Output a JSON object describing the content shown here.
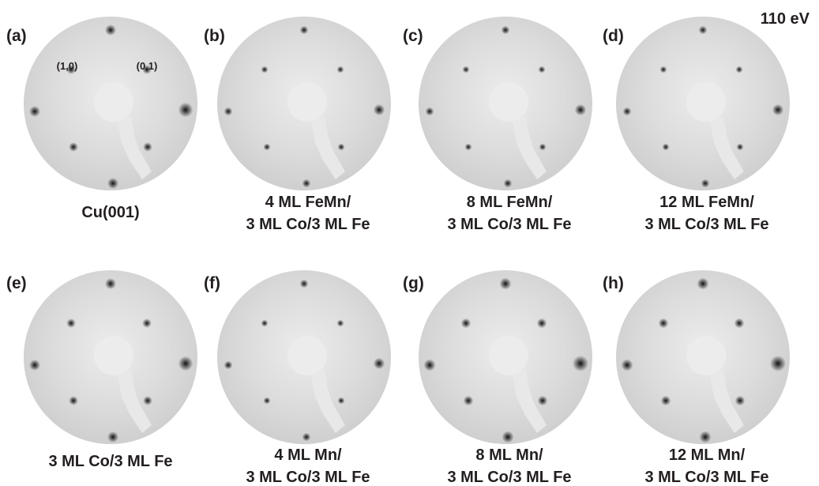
{
  "energy": "110 eV",
  "panels": [
    {
      "label": "(a)",
      "caption": [
        "Cu(001)"
      ],
      "spot_labels": [
        "(1,0)",
        "(0,1)"
      ]
    },
    {
      "label": "(b)",
      "caption": [
        "4 ML FeMn/",
        "3 ML Co/3 ML Fe"
      ]
    },
    {
      "label": "(c)",
      "caption": [
        "8 ML FeMn/",
        "3 ML Co/3 ML Fe"
      ]
    },
    {
      "label": "(d)",
      "caption": [
        "12 ML FeMn/",
        "3 ML Co/3 ML Fe"
      ]
    },
    {
      "label": "(e)",
      "caption": [
        "3 ML Co/3 ML Fe"
      ]
    },
    {
      "label": "(f)",
      "caption": [
        "4 ML Mn/",
        "3 ML Co/3 ML Fe"
      ]
    },
    {
      "label": "(g)",
      "caption": [
        "8 ML Mn/",
        "3 ML Co/3 ML Fe"
      ]
    },
    {
      "label": "(h)",
      "caption": [
        "12 ML Mn/",
        "3 ML Co/3 ML Fe"
      ]
    }
  ]
}
